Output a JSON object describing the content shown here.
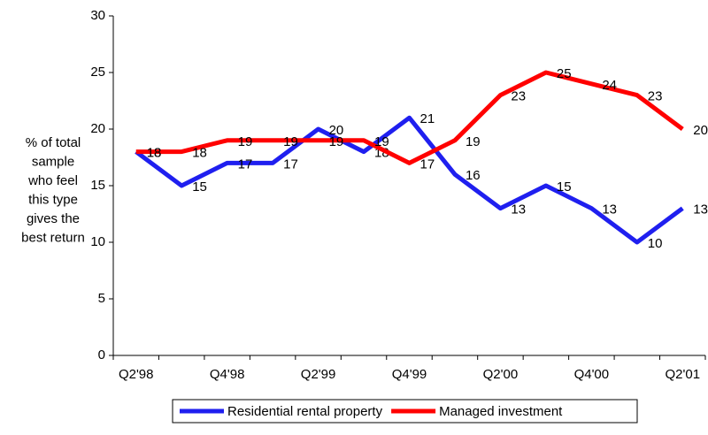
{
  "chart_data": {
    "type": "line",
    "y_label": [
      "% of total",
      "sample",
      "who feel",
      "this type",
      "gives the",
      "best return"
    ],
    "categories": [
      "Q2'98",
      null,
      "Q4'98",
      null,
      "Q2'99",
      null,
      "Q4'99",
      null,
      "Q2'00",
      null,
      "Q4'00",
      null,
      "Q2'01"
    ],
    "series": [
      {
        "name": "Residential rental property",
        "color": "#1f1fef",
        "values": [
          18,
          15,
          17,
          17,
          20,
          18,
          21,
          16,
          13,
          15,
          13,
          10,
          13
        ]
      },
      {
        "name": "Managed investment",
        "color": "#ff0000",
        "values": [
          18,
          18,
          19,
          19,
          19,
          19,
          17,
          19,
          23,
          25,
          24,
          23,
          20
        ]
      }
    ],
    "ylim": [
      0,
      30
    ],
    "yticks": [
      0,
      5,
      10,
      15,
      20,
      25,
      30
    ],
    "legend": "bottom"
  }
}
